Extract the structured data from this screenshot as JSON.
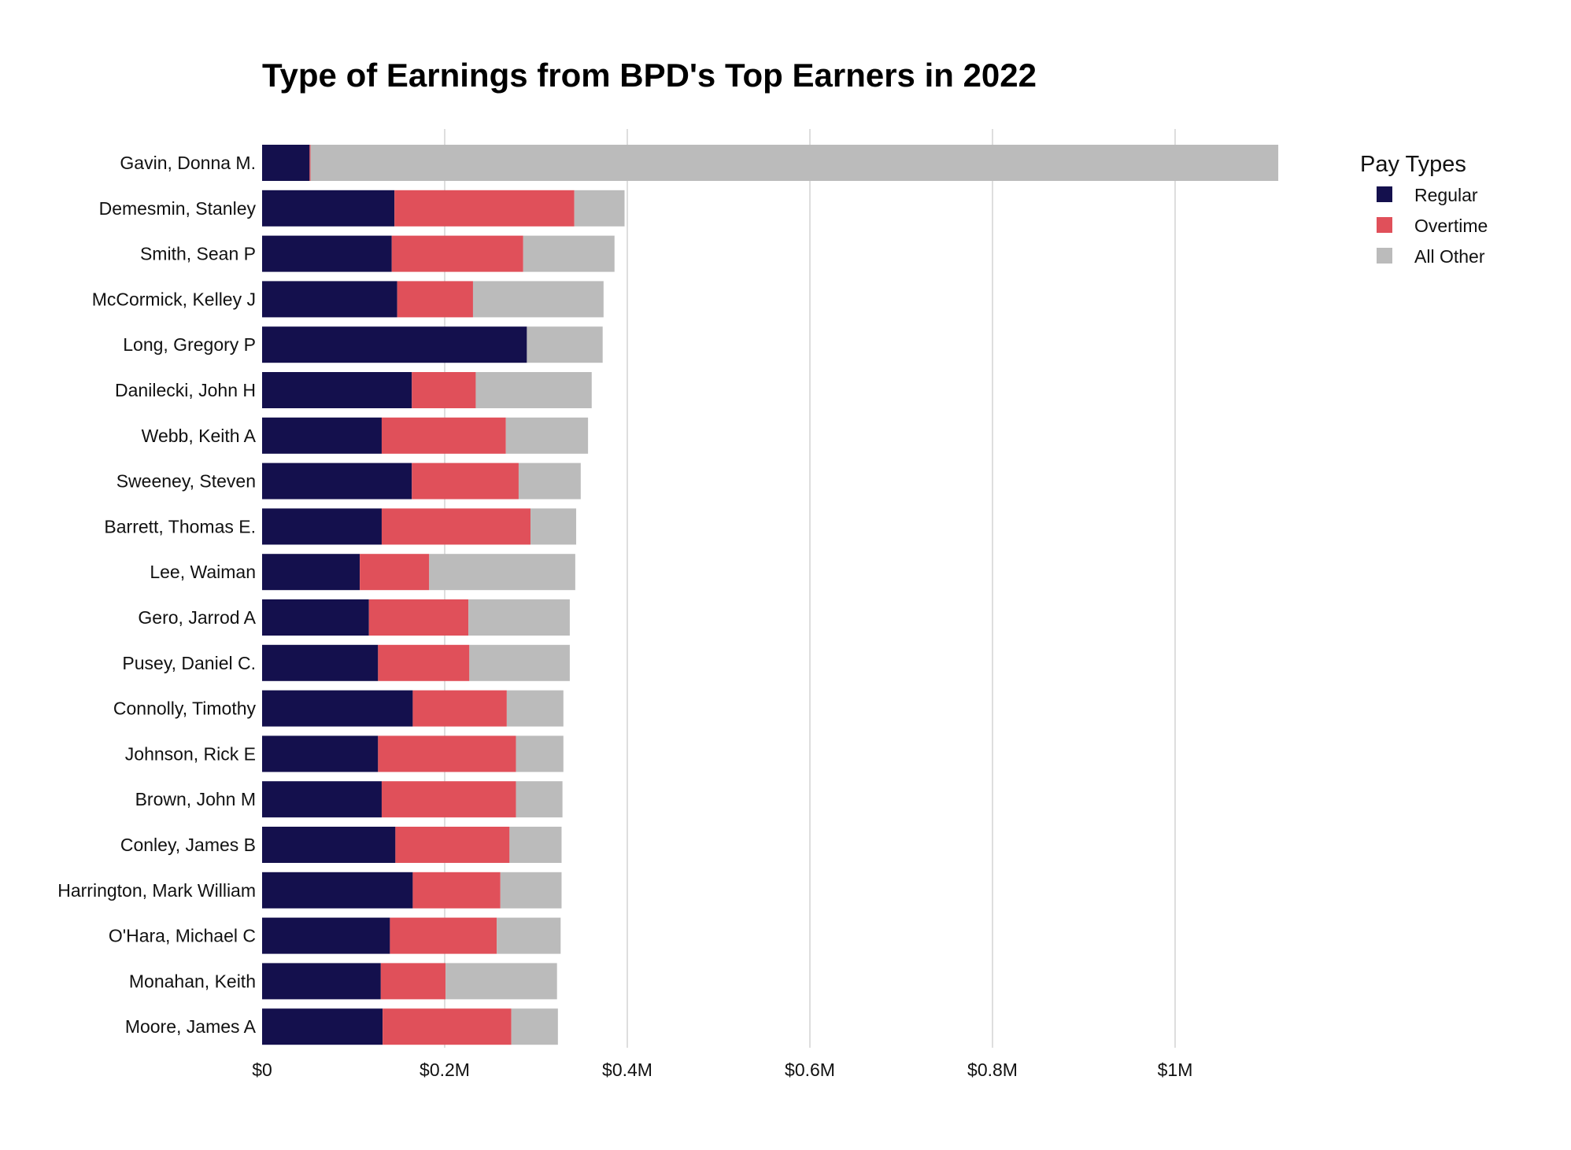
{
  "chart_data": {
    "type": "bar",
    "orientation": "horizontal",
    "stacked": true,
    "title": "Type of Earnings from BPD's Top Earners in 2022",
    "xlabel": "",
    "ylabel": "",
    "xlim": [
      0,
      1200000
    ],
    "x_ticks": [
      0,
      200000,
      400000,
      600000,
      800000,
      1000000
    ],
    "x_tick_labels": [
      "$0",
      "$0.2M",
      "$0.4M",
      "$0.6M",
      "$0.8M",
      "$1M"
    ],
    "grid": "vertical",
    "legend_title": "Pay Types",
    "legend_position": "top-right",
    "categories": [
      "Gavin, Donna M.",
      "Demesmin, Stanley",
      "Smith, Sean P",
      "McCormick, Kelley J",
      "Long, Gregory P",
      "Danilecki, John H",
      "Webb, Keith A",
      "Sweeney, Steven",
      "Barrett, Thomas E.",
      "Lee, Waiman",
      "Gero, Jarrod A",
      "Pusey, Daniel C.",
      "Connolly, Timothy",
      "Johnson, Rick E",
      "Brown, John M",
      "Conley, James B",
      "Harrington, Mark William",
      "O'Hara, Michael C",
      "Monahan, Keith",
      "Moore, James A"
    ],
    "series": [
      {
        "name": "Regular",
        "color": "#14104d",
        "values": [
          52000,
          145000,
          142000,
          148000,
          290000,
          164000,
          131000,
          164000,
          131000,
          107000,
          117000,
          127000,
          165000,
          127000,
          131000,
          146000,
          165000,
          140000,
          130000,
          132000
        ]
      },
      {
        "name": "Overtime",
        "color": "#e0505a",
        "values": [
          1000,
          197000,
          144000,
          83000,
          0,
          70000,
          136000,
          117000,
          163000,
          76000,
          109000,
          100000,
          103000,
          151000,
          147000,
          125000,
          96000,
          117000,
          71000,
          141000
        ]
      },
      {
        "name": "All Other",
        "color": "#bbbbbb",
        "values": [
          1060000,
          55000,
          100000,
          143000,
          83000,
          127000,
          90000,
          68000,
          50000,
          160000,
          111000,
          110000,
          62000,
          52000,
          51000,
          57000,
          67000,
          70000,
          122000,
          51000
        ]
      }
    ]
  }
}
